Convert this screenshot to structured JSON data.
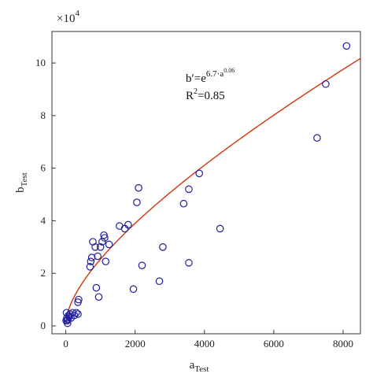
{
  "chart_data": {
    "type": "scatter",
    "xlabel": "a",
    "xlabel_sub": "Test",
    "ylabel": "b",
    "ylabel_sub": "Test",
    "y_multiplier": "×10",
    "y_multiplier_exp": "4",
    "xlim": [
      -400,
      8500
    ],
    "ylim": [
      -0.3,
      11.2
    ],
    "xticks": [
      0,
      2000,
      4000,
      6000,
      8000
    ],
    "yticks": [
      0,
      2,
      4,
      6,
      8,
      10
    ],
    "xtick_labels": [
      "0",
      "2000",
      "4000",
      "6000",
      "8000"
    ],
    "ytick_labels": [
      "0",
      "2",
      "4",
      "6",
      "8",
      "10"
    ],
    "grid": false,
    "marker_color": "#1f1f9e",
    "curve_color": "#d2401a",
    "annotation": {
      "line1_prefix": "b′=e",
      "line1_exp": "6.7·a",
      "line1_exp_sup": "0.06",
      "line2_prefix": "R",
      "line2_sup": "2",
      "line2_suffix": "=0.85"
    },
    "series": [
      {
        "type": "scatter",
        "points": [
          [
            10,
            0.2
          ],
          [
            30,
            0.3
          ],
          [
            40,
            0.2
          ],
          [
            20,
            0.5
          ],
          [
            60,
            0.25
          ],
          [
            80,
            0.4
          ],
          [
            100,
            0.35
          ],
          [
            50,
            0.1
          ],
          [
            120,
            0.45
          ],
          [
            150,
            0.3
          ],
          [
            200,
            0.5
          ],
          [
            250,
            0.4
          ],
          [
            300,
            0.5
          ],
          [
            350,
            0.45
          ],
          [
            350,
            0.9
          ],
          [
            370,
            1.0
          ],
          [
            700,
            2.25
          ],
          [
            720,
            2.45
          ],
          [
            750,
            2.6
          ],
          [
            780,
            3.2
          ],
          [
            850,
            3.0
          ],
          [
            880,
            1.45
          ],
          [
            920,
            2.65
          ],
          [
            950,
            1.1
          ],
          [
            1000,
            3.0
          ],
          [
            1050,
            3.2
          ],
          [
            1100,
            3.45
          ],
          [
            1120,
            3.35
          ],
          [
            1150,
            2.45
          ],
          [
            1250,
            3.1
          ],
          [
            1550,
            3.8
          ],
          [
            1700,
            3.7
          ],
          [
            1800,
            3.85
          ],
          [
            1950,
            1.4
          ],
          [
            2050,
            4.7
          ],
          [
            2100,
            5.25
          ],
          [
            2200,
            2.3
          ],
          [
            2700,
            1.7
          ],
          [
            2800,
            3.0
          ],
          [
            3400,
            4.65
          ],
          [
            3550,
            2.4
          ],
          [
            3550,
            5.2
          ],
          [
            3850,
            5.8
          ],
          [
            4450,
            3.7
          ],
          [
            7250,
            7.15
          ],
          [
            7500,
            9.2
          ],
          [
            8100,
            10.65
          ]
        ]
      },
      {
        "type": "line",
        "function": "b = e^(6.7·a^0.06) / 10^4",
        "coefficient": 6.7,
        "exponent": 0.06
      }
    ]
  }
}
